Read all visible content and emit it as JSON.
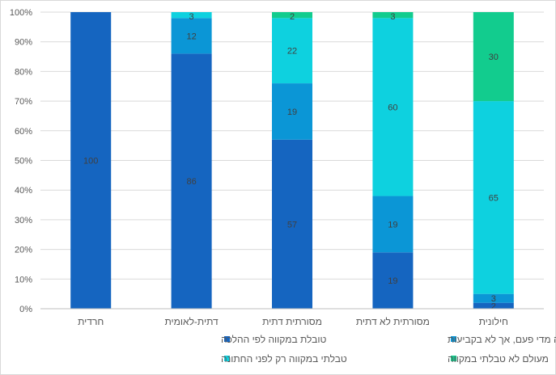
{
  "chart_data": {
    "type": "bar",
    "stacked": true,
    "percent_stacked": true,
    "categories": [
      "חרדית",
      "דתית-לאומית",
      "מסורתית דתית",
      "מסורתית לא דתית",
      "חילונית"
    ],
    "series": [
      {
        "name": "טובלת במקווה לפי ההלכה",
        "values": [
          100,
          86,
          57,
          19,
          2
        ],
        "labels": [
          "100",
          "86",
          "57",
          "19",
          "2"
        ],
        "color": "#1565C0"
      },
      {
        "name": "טובלת במקווה מדי פעם, אך לא בקביעות",
        "values": [
          0,
          12,
          19,
          19,
          3
        ],
        "labels": [
          "",
          "12",
          "19",
          "19",
          "3"
        ],
        "color": "#0B96D6"
      },
      {
        "name": "טבלתי במקווה רק לפני החתונה",
        "values": [
          0,
          3,
          22,
          60,
          65
        ],
        "labels": [
          "",
          "3",
          "22",
          "60",
          "65"
        ],
        "color": "#0ED1DF"
      },
      {
        "name": "מעולם לא טבלתי במקווה",
        "values": [
          0,
          0,
          2,
          3,
          30
        ],
        "labels": [
          "",
          "",
          "2",
          "3",
          "30"
        ],
        "color": "#12CC8E"
      }
    ],
    "yticks": [
      "0%",
      "10%",
      "20%",
      "30%",
      "40%",
      "50%",
      "60%",
      "70%",
      "80%",
      "90%",
      "100%"
    ],
    "ylim": [
      0,
      100
    ],
    "grid": true,
    "legend_position": "bottom",
    "colors": {
      "grid": "#d9d9d9",
      "axis": "#bfbfbf",
      "text": "#595959",
      "label": "#404040"
    }
  }
}
